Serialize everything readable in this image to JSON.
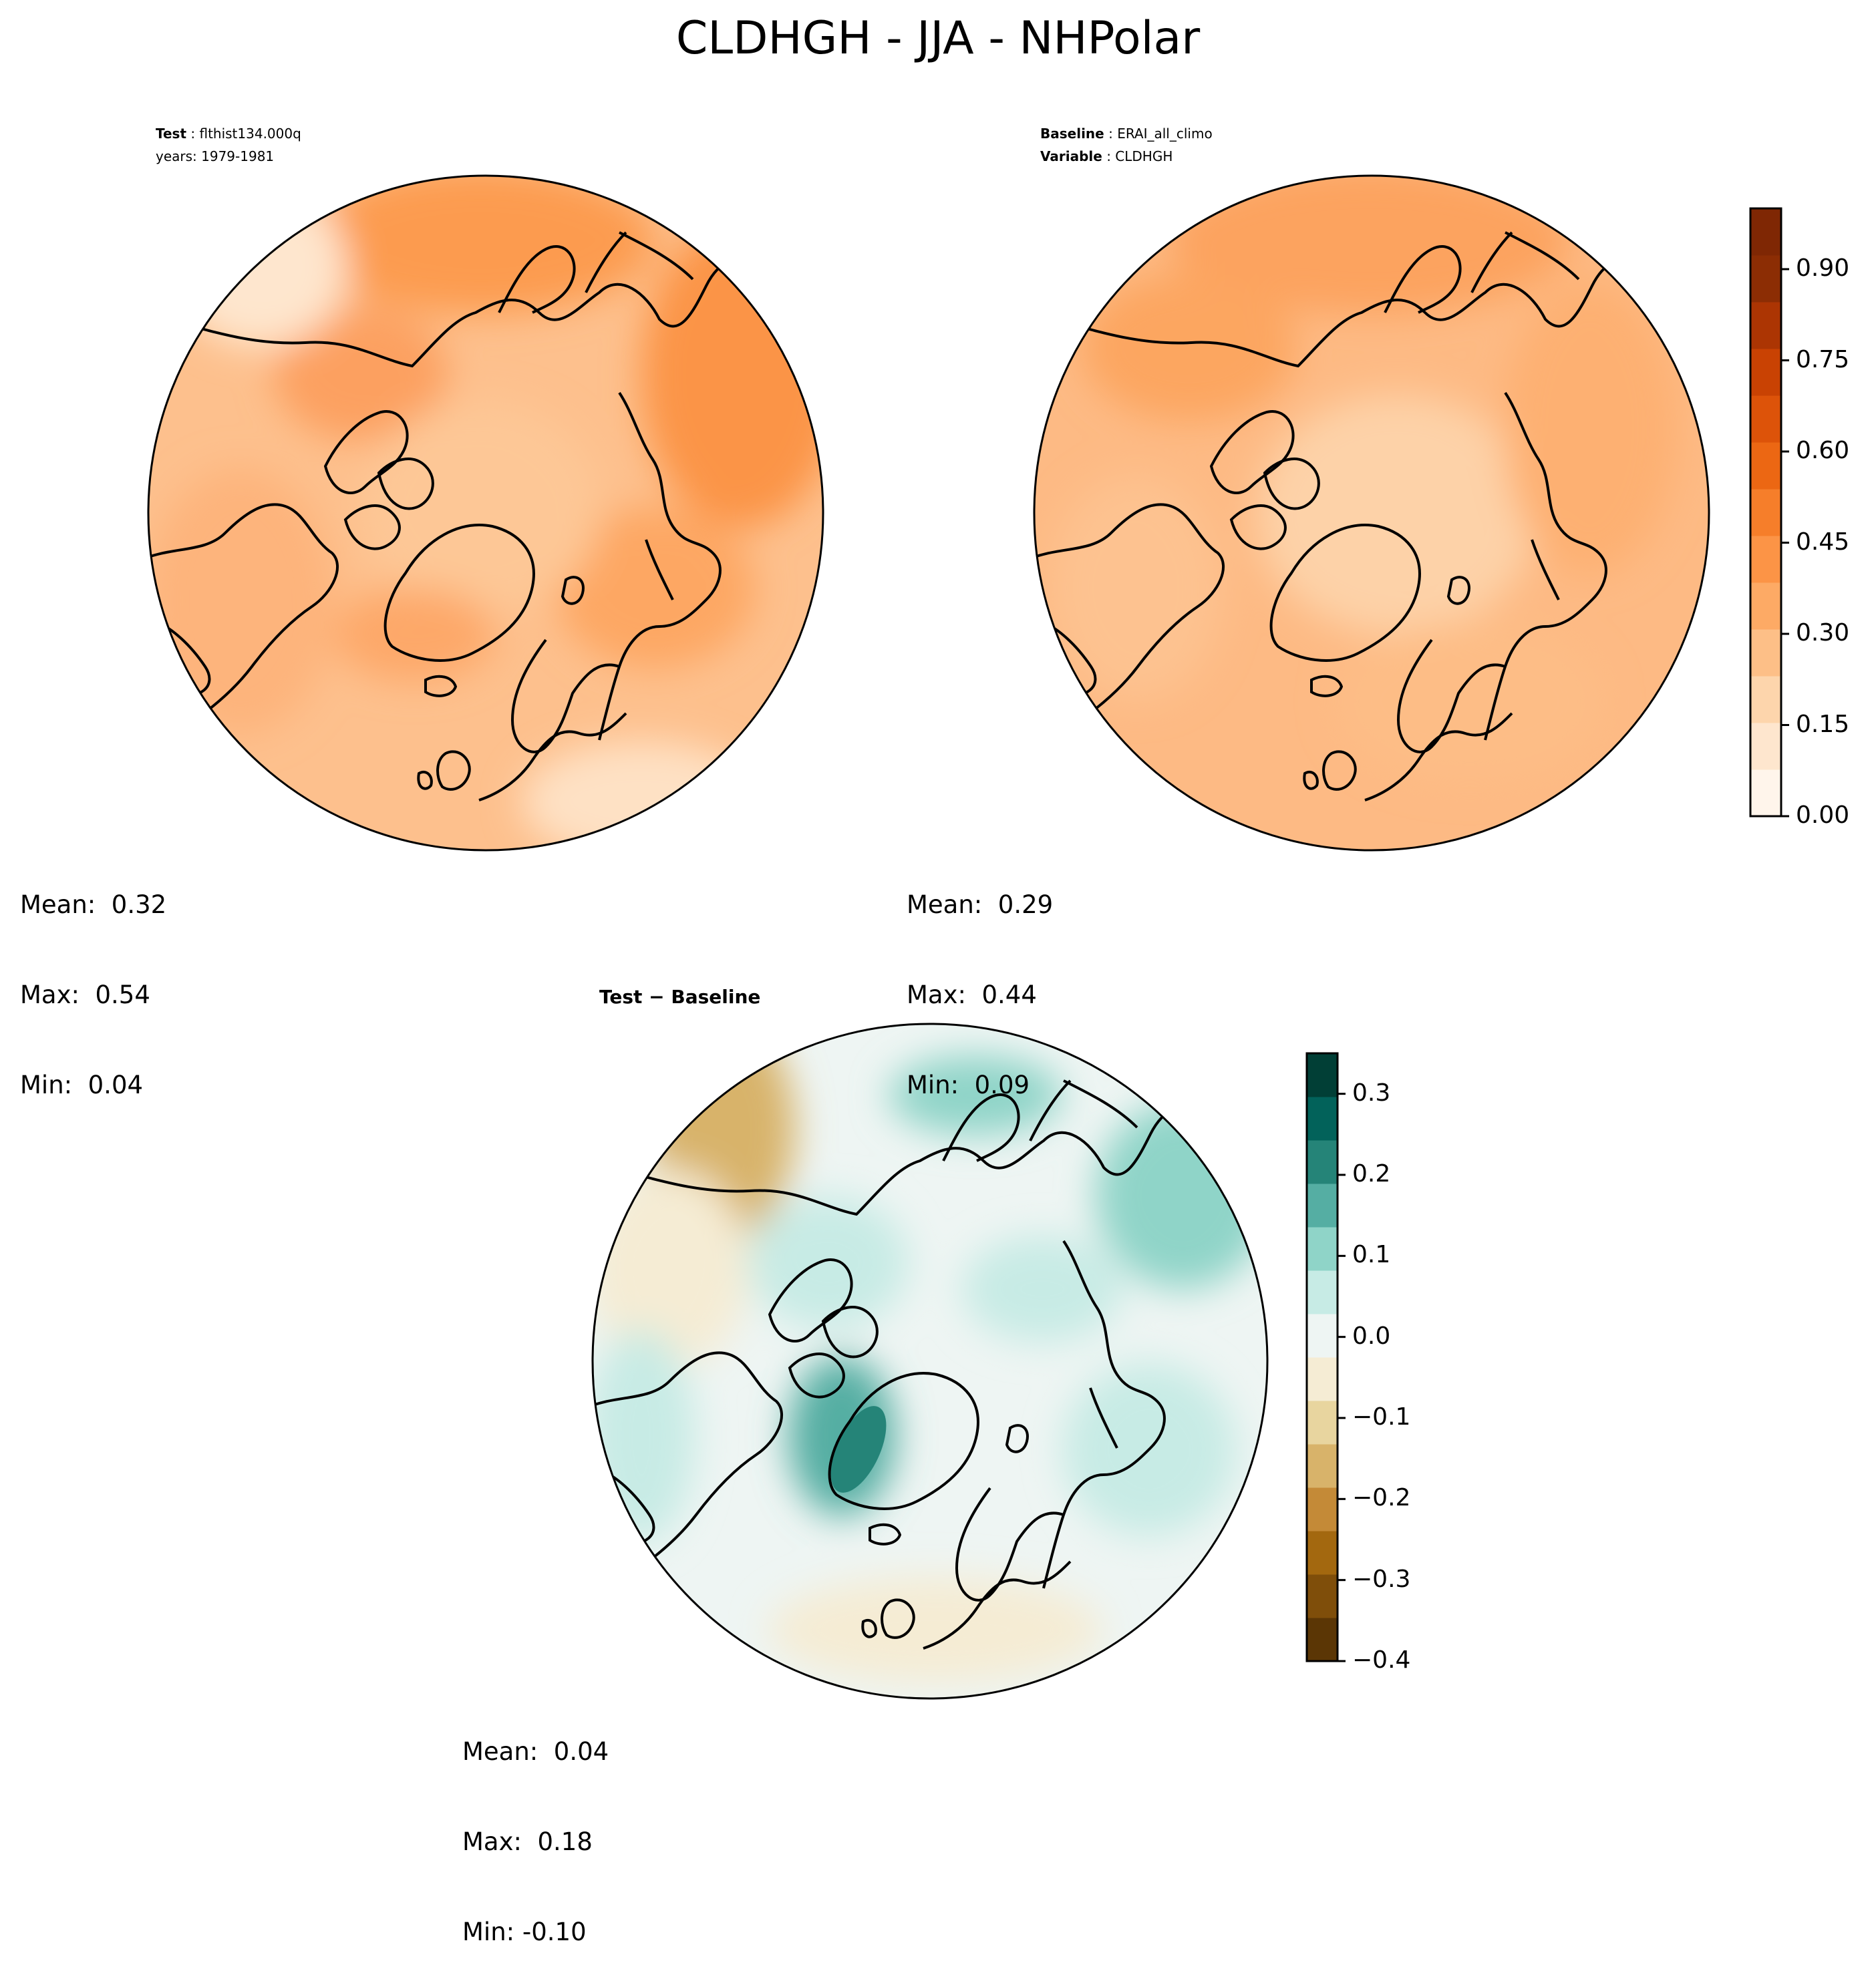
{
  "figure": {
    "title": "CLDHGH - JJA - NHPolar"
  },
  "test_panel": {
    "label_key": "Test",
    "label_value": "flthist134.000q",
    "years_line": "years: 1979-1981",
    "stats": {
      "mean": "Mean:  0.32",
      "max": "Max:  0.54",
      "min": "Min:  0.04"
    }
  },
  "baseline_panel": {
    "label_key": "Baseline",
    "label_value": "ERAI_all_climo",
    "var_key": "Variable",
    "var_value": "CLDHGH",
    "stats": {
      "mean": "Mean:  0.29",
      "max": "Max:  0.44",
      "min": "Min:  0.09"
    }
  },
  "diff_panel": {
    "title": "Test − Baseline",
    "stats": {
      "mean": "Mean:  0.04",
      "max": "Max:  0.18",
      "min": "Min: -0.10"
    }
  },
  "colors": {
    "oranges": [
      "#fff5eb",
      "#fee6ce",
      "#fdd5ac",
      "#fdbf87",
      "#fdaa65",
      "#fc9446",
      "#f67e2a",
      "#ec6713",
      "#dd5309",
      "#c94203",
      "#ac3503",
      "#8c2d04",
      "#7f2704"
    ],
    "brbg": [
      "#5b3605",
      "#7f4e0a",
      "#a3680f",
      "#c48a37",
      "#d8b36a",
      "#e8d59f",
      "#f5ecd4",
      "#eef5f3",
      "#c7ebe5",
      "#8fd4c8",
      "#55aea3",
      "#258478",
      "#02625a",
      "#013f36"
    ]
  },
  "chart_data": [
    {
      "type": "heatmap",
      "panel": "test",
      "projection": "north-polar-stereographic",
      "variable": "CLDHGH",
      "mean": 0.32,
      "max": 0.54,
      "min": 0.04,
      "colorbar": {
        "shared_with": "baseline"
      }
    },
    {
      "type": "heatmap",
      "panel": "baseline",
      "projection": "north-polar-stereographic",
      "variable": "CLDHGH",
      "mean": 0.29,
      "max": 0.44,
      "min": 0.09,
      "colorbar": {
        "range": [
          0.0,
          1.0
        ],
        "ticks": [
          0.0,
          0.15,
          0.3,
          0.45,
          0.6,
          0.75,
          0.9
        ],
        "tick_labels": [
          "0.00",
          "0.15",
          "0.30",
          "0.45",
          "0.60",
          "0.75",
          "0.90"
        ],
        "colormap": "Oranges"
      }
    },
    {
      "type": "heatmap",
      "panel": "difference",
      "projection": "north-polar-stereographic",
      "mean": 0.04,
      "max": 0.18,
      "min": -0.1,
      "colorbar": {
        "range": [
          -0.4,
          0.35
        ],
        "ticks": [
          -0.4,
          -0.3,
          -0.2,
          -0.1,
          0.0,
          0.1,
          0.2,
          0.3
        ],
        "tick_labels": [
          "−0.4",
          "−0.3",
          "−0.2",
          "−0.1",
          "0.0",
          "0.1",
          "0.2",
          "0.3"
        ],
        "colormap": "BrBG"
      }
    }
  ]
}
